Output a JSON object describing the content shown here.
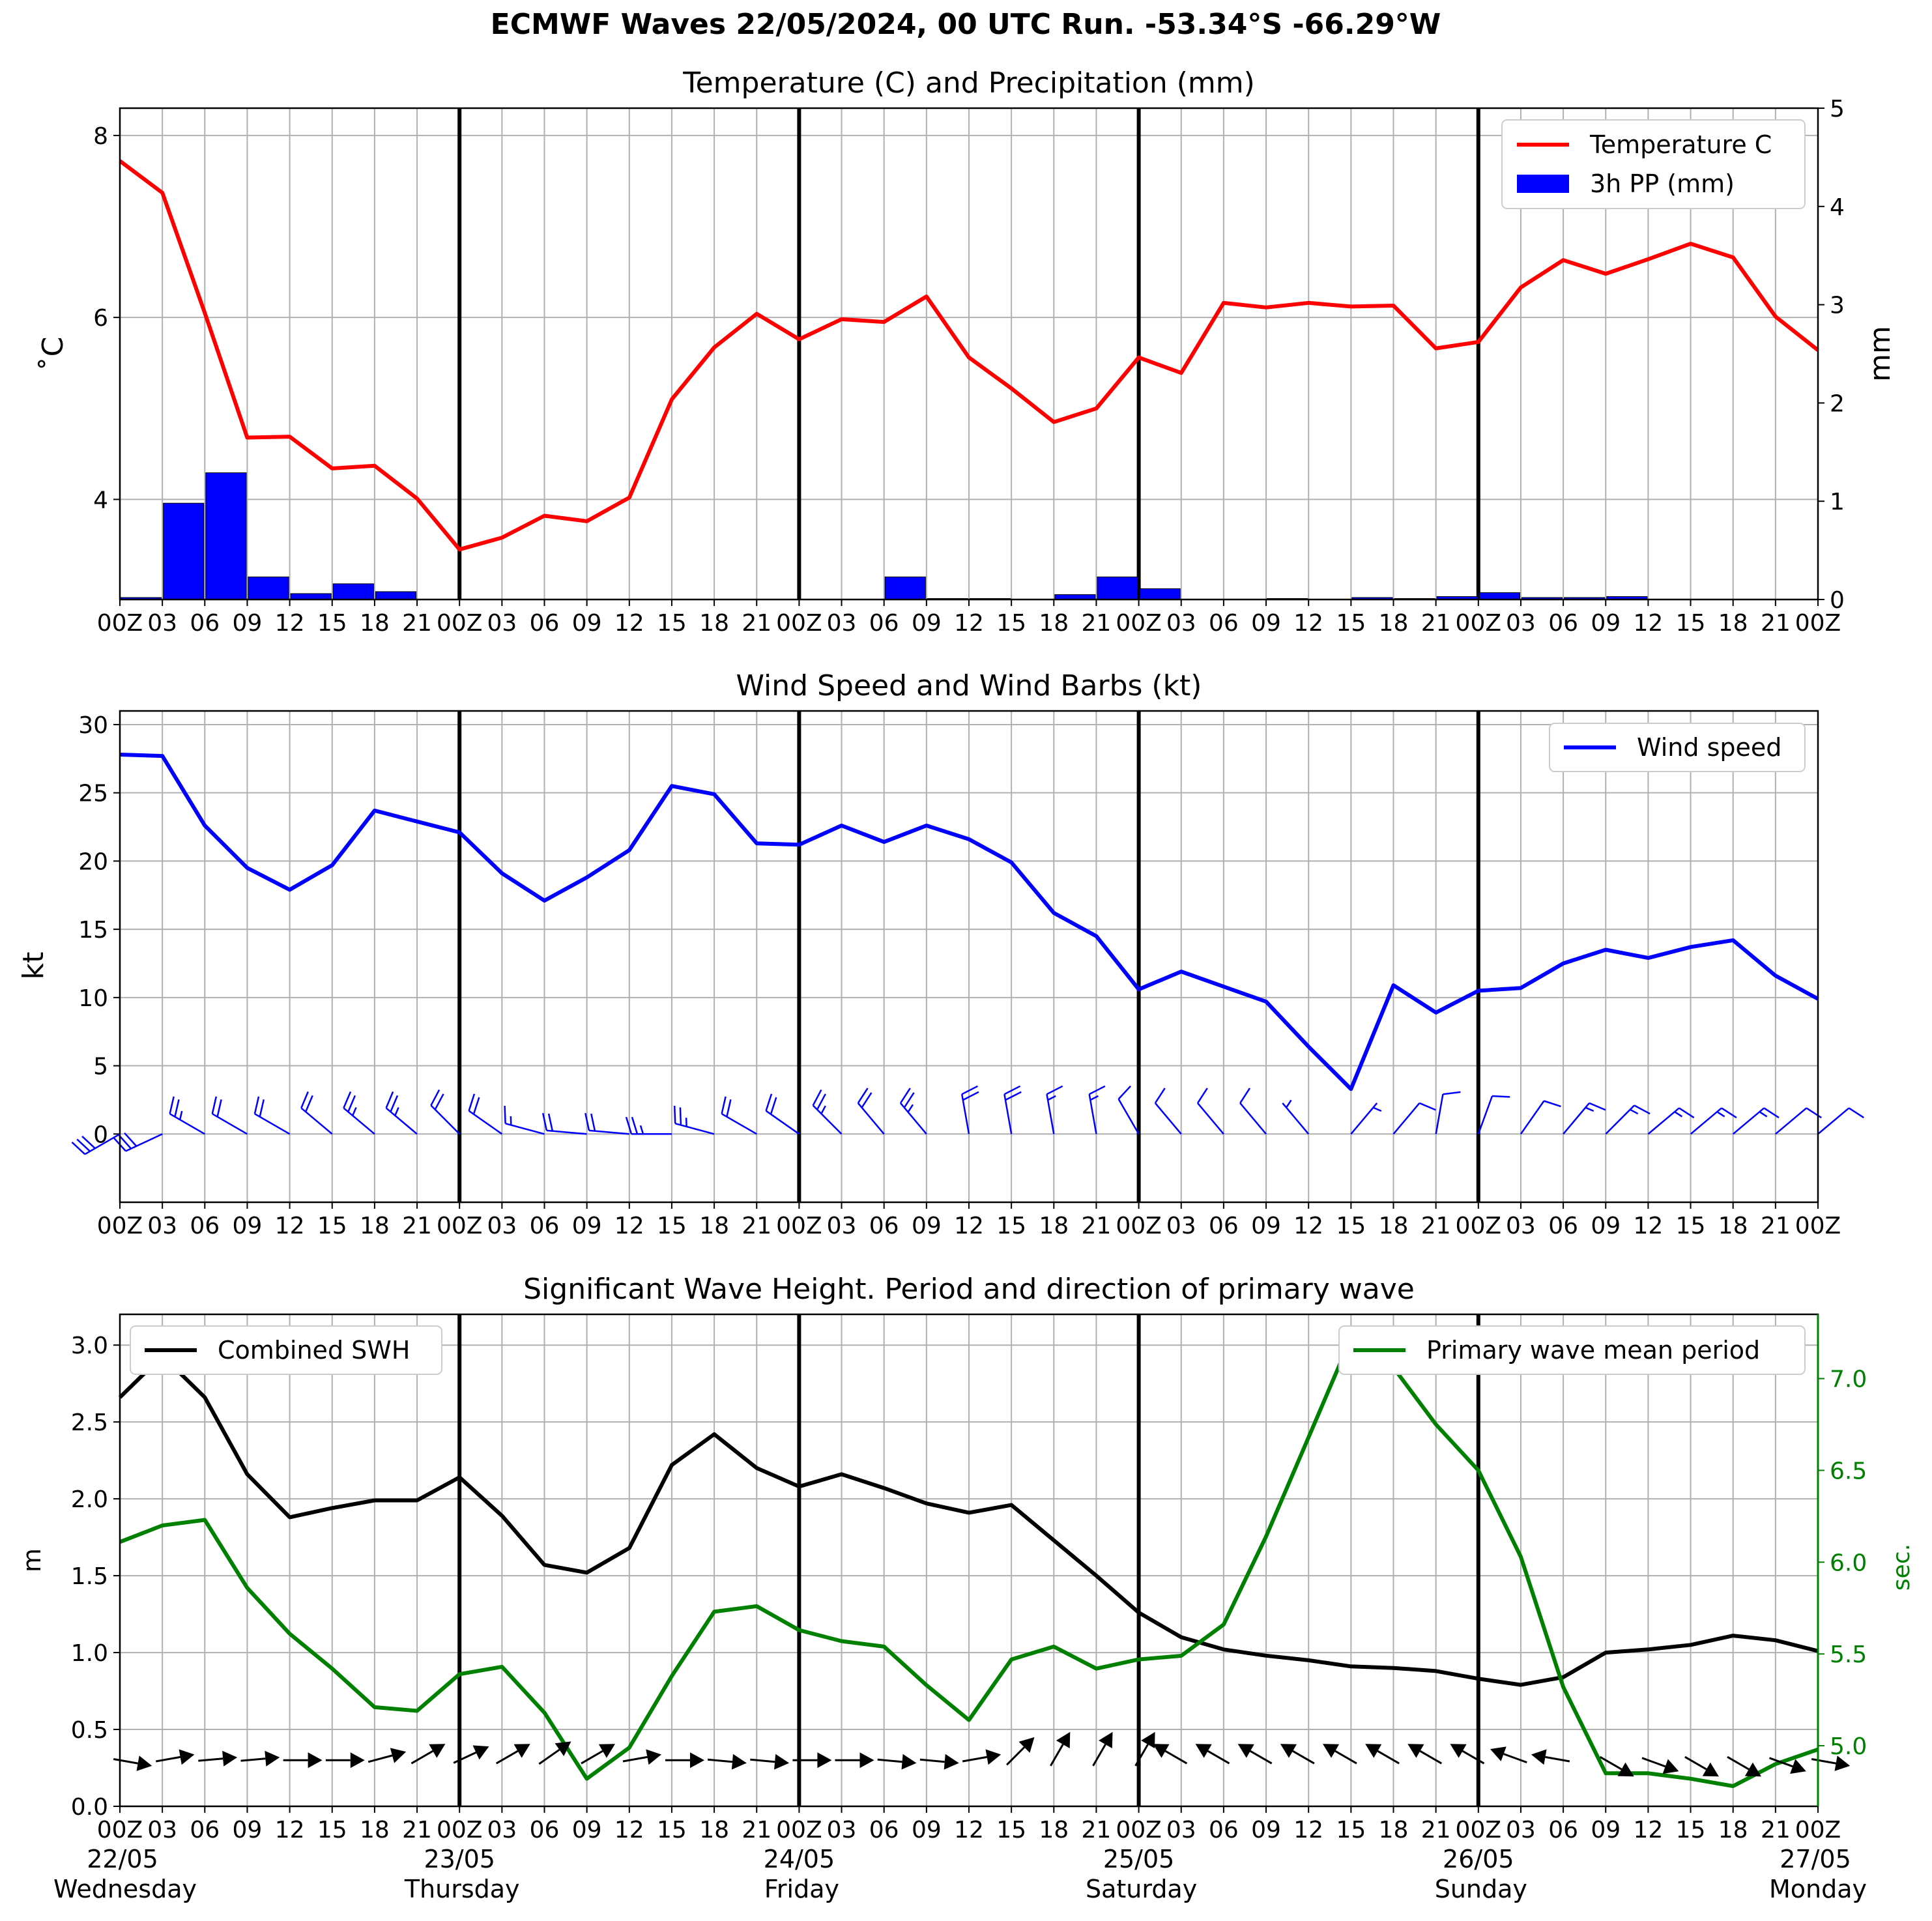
{
  "figure": {
    "title": "ECMWF Waves 22/05/2024, 00 UTC Run. -53.34°S -66.29°W"
  },
  "colors": {
    "temperature": "#ff0000",
    "precip": "#0000ff",
    "wind": "#0000ff",
    "swh": "#000000",
    "period": "#008000",
    "grid": "#b0b0b0"
  },
  "x_hour_labels": [
    "00Z",
    "03",
    "06",
    "09",
    "12",
    "15",
    "18",
    "21",
    "00Z",
    "03",
    "06",
    "09",
    "12",
    "15",
    "18",
    "21",
    "00Z",
    "03",
    "06",
    "09",
    "12",
    "15",
    "18",
    "21",
    "00Z",
    "03",
    "06",
    "09",
    "12",
    "15",
    "18",
    "21",
    "00Z",
    "03",
    "06",
    "09",
    "12",
    "15",
    "18",
    "21",
    "00Z"
  ],
  "day_labels": [
    {
      "date": "22/05",
      "day": "Wednesday",
      "index": 0
    },
    {
      "date": "23/05",
      "day": "Thursday",
      "index": 8
    },
    {
      "date": "24/05",
      "day": "Friday",
      "index": 16
    },
    {
      "date": "25/05",
      "day": "Saturday",
      "index": 24
    },
    {
      "date": "26/05",
      "day": "Sunday",
      "index": 32
    },
    {
      "date": "27/05",
      "day": "Monday",
      "index": 40
    }
  ],
  "chart_data": [
    {
      "type": "line",
      "title": "Temperature (C) and Precipitation (mm)",
      "ylabel": "$^\\circ$C",
      "ylabel_display": "˚C",
      "y2label": "mm",
      "ylim": [
        2.9,
        8.3
      ],
      "yticks": [
        4,
        6,
        8
      ],
      "y2lim": [
        0,
        5
      ],
      "y2ticks": [
        0,
        1,
        2,
        3,
        4,
        5
      ],
      "legend": "top-right",
      "grid": true,
      "series": [
        {
          "name": "Temperature C",
          "type": "line",
          "values": [
            7.72,
            7.37,
            6.05,
            4.68,
            4.69,
            4.34,
            4.37,
            4.01,
            3.45,
            3.58,
            3.82,
            3.76,
            4.02,
            5.1,
            5.67,
            6.04,
            5.76,
            5.98,
            5.95,
            6.23,
            5.56,
            5.22,
            4.85,
            5.0,
            5.56,
            5.39,
            6.16,
            6.11,
            6.16,
            6.12,
            6.13,
            5.66,
            5.73,
            6.33,
            6.63,
            6.48,
            6.64,
            6.81,
            6.66,
            6.01,
            5.64
          ]
        },
        {
          "name": "3h PP (mm)",
          "type": "bar",
          "values": [
            0,
            0.02,
            0.98,
            1.29,
            0.23,
            0.06,
            0.16,
            0.08,
            0,
            0,
            0,
            0,
            0,
            0,
            0,
            0,
            0,
            0,
            0,
            0.23,
            0.01,
            0.01,
            0,
            0.05,
            0.23,
            0.11,
            0,
            0,
            0.01,
            0,
            0.02,
            0.01,
            0.03,
            0.07,
            0.02,
            0.02,
            0.03,
            0,
            0,
            0,
            0
          ]
        }
      ]
    },
    {
      "type": "line",
      "title": "Wind Speed and Wind Barbs (kt)",
      "ylabel": "kt",
      "ylim": [
        -5,
        31
      ],
      "yticks": [
        0,
        5,
        10,
        15,
        20,
        25,
        30
      ],
      "legend": "top-right",
      "grid": true,
      "series": [
        {
          "name": "Wind speed",
          "values": [
            27.8,
            27.7,
            22.6,
            19.5,
            17.9,
            19.7,
            23.7,
            22.9,
            22.1,
            19.1,
            17.1,
            18.8,
            20.8,
            25.5,
            24.9,
            21.3,
            21.2,
            22.6,
            21.4,
            22.6,
            21.6,
            19.9,
            16.2,
            14.5,
            10.6,
            11.9,
            10.8,
            9.7,
            6.4,
            3.3,
            10.9,
            8.9,
            10.5,
            10.7,
            12.5,
            13.5,
            12.9,
            13.7,
            14.2,
            11.6,
            9.9
          ]
        }
      ],
      "barbs_from_deg": [
        240,
        245,
        300,
        300,
        300,
        310,
        310,
        310,
        315,
        305,
        285,
        275,
        275,
        270,
        285,
        300,
        305,
        315,
        320,
        320,
        350,
        350,
        350,
        350,
        330,
        320,
        320,
        320,
        320,
        40,
        40,
        10,
        20,
        35,
        40,
        45,
        50,
        50,
        50,
        50,
        50
      ]
    },
    {
      "type": "line",
      "title": "Significant Wave Height. Period and direction of primary wave",
      "ylabel": "m",
      "y2label": "sec.",
      "ylim": [
        0,
        3.2
      ],
      "yticks": [
        0.0,
        0.5,
        1.0,
        1.5,
        2.0,
        2.5,
        3.0
      ],
      "y2lim": [
        4.67,
        7.35
      ],
      "y2ticks": [
        5.0,
        5.5,
        6.0,
        6.5,
        7.0
      ],
      "grid": true,
      "series": [
        {
          "name": "Combined SWH",
          "axis": "left",
          "legend": "top-left",
          "values": [
            2.66,
            2.93,
            2.66,
            2.16,
            1.88,
            1.94,
            1.99,
            1.99,
            2.14,
            1.89,
            1.57,
            1.52,
            1.68,
            2.22,
            2.42,
            2.2,
            2.08,
            2.16,
            2.07,
            1.97,
            1.91,
            1.96,
            1.73,
            1.5,
            1.26,
            1.1,
            1.02,
            0.98,
            0.95,
            0.91,
            0.9,
            0.88,
            0.83,
            0.79,
            0.84,
            1.0,
            1.02,
            1.05,
            1.11,
            1.08,
            1.01
          ]
        },
        {
          "name": "Primary wave mean period",
          "axis": "right",
          "legend": "top-right",
          "values": [
            6.11,
            6.2,
            6.23,
            5.86,
            5.61,
            5.42,
            5.21,
            5.19,
            5.39,
            5.43,
            5.18,
            4.82,
            4.99,
            5.38,
            5.73,
            5.76,
            5.63,
            5.57,
            5.54,
            5.33,
            5.14,
            5.47,
            5.54,
            5.42,
            5.47,
            5.49,
            5.66,
            6.14,
            6.68,
            7.22,
            7.06,
            6.75,
            6.5,
            6.03,
            5.32,
            4.85,
            4.85,
            4.82,
            4.78,
            4.9,
            4.98
          ]
        }
      ],
      "arrows_to_deg": [
        100,
        80,
        85,
        85,
        90,
        90,
        75,
        60,
        65,
        60,
        55,
        60,
        80,
        90,
        95,
        95,
        90,
        90,
        95,
        95,
        80,
        45,
        30,
        30,
        30,
        300,
        300,
        300,
        300,
        300,
        300,
        300,
        300,
        290,
        280,
        120,
        110,
        120,
        120,
        110,
        100
      ]
    }
  ]
}
